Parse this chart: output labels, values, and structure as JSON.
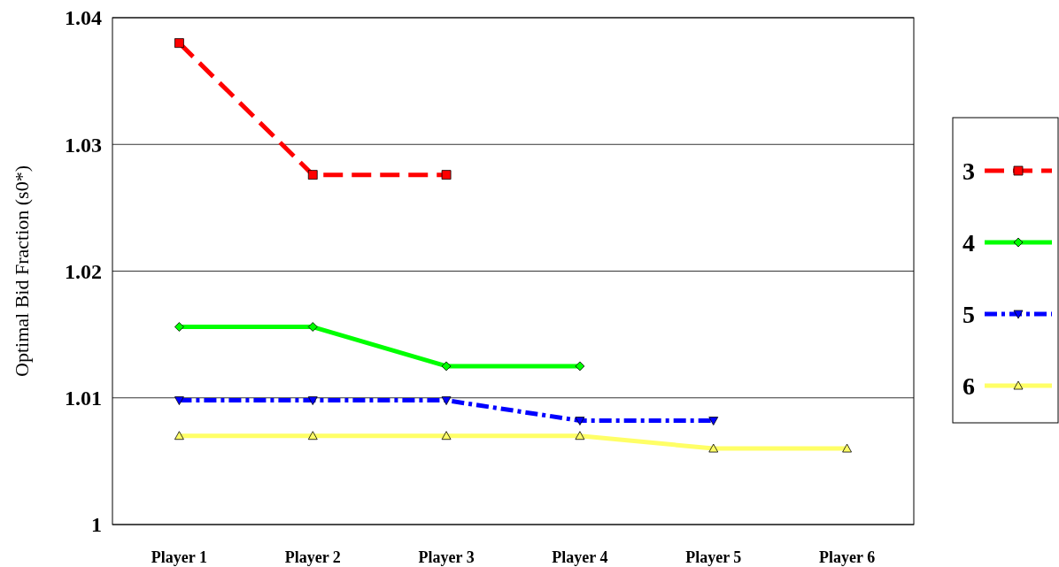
{
  "chart_data": {
    "type": "line",
    "ylabel": "Optimal Bid Fraction (s0*)",
    "categories": [
      "Player 1",
      "Player 2",
      "Player 3",
      "Player 4",
      "Player 5",
      "Player 6"
    ],
    "series": [
      {
        "name": "3",
        "color": "#ff0000",
        "values": [
          1.038,
          1.0276,
          1.0276,
          null,
          null,
          null
        ],
        "marker": "square",
        "line_style": "dashed"
      },
      {
        "name": "4",
        "color": "#00ff00",
        "values": [
          1.0156,
          1.0156,
          1.0125,
          1.0125,
          null,
          null
        ],
        "marker": "diamond",
        "line_style": "solid"
      },
      {
        "name": "5",
        "color": "#0000ff",
        "values": [
          1.0098,
          1.0098,
          1.0098,
          1.0082,
          1.0082,
          null
        ],
        "marker": "triangle-down",
        "line_style": "dotted"
      },
      {
        "name": "6",
        "color": "#ffff66",
        "values": [
          1.007,
          1.007,
          1.007,
          1.007,
          1.006,
          1.006
        ],
        "marker": "triangle",
        "line_style": "solid"
      }
    ],
    "ylim": [
      1,
      1.04
    ],
    "yticks": [
      1,
      1.01,
      1.02,
      1.03,
      1.04
    ],
    "grid": "y",
    "legend": "right"
  }
}
